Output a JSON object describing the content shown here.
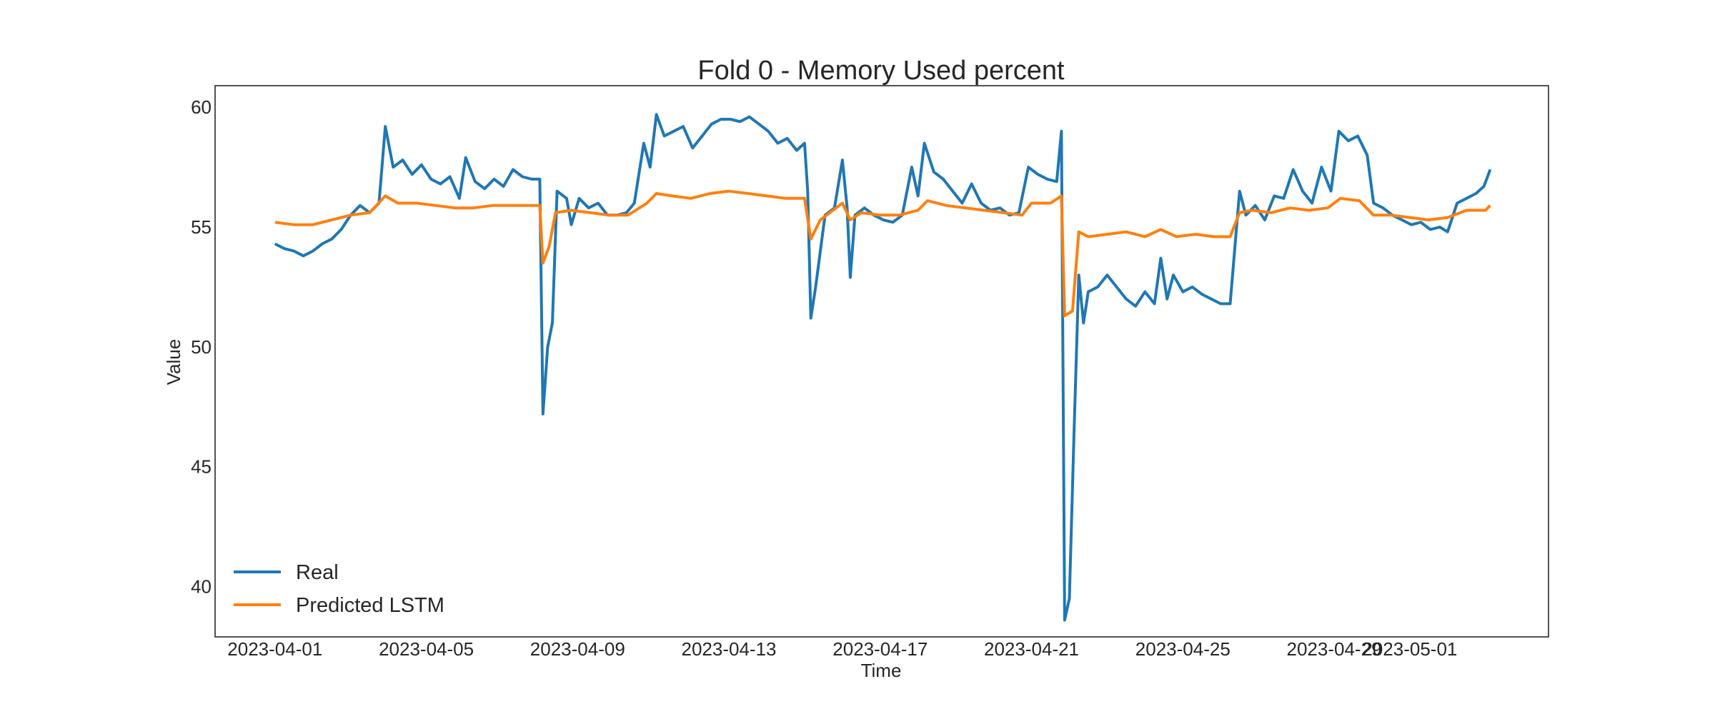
{
  "chart_data": {
    "type": "line",
    "title": "Fold 0 - Memory Used percent",
    "xlabel": "Time",
    "ylabel": "Value",
    "x_type": "date",
    "xlim": [
      "2023-03-30T10:00",
      "2023-05-04T16:00"
    ],
    "ylim": [
      37.9,
      60.9
    ],
    "x_ticks": [
      "2023-04-01",
      "2023-04-05",
      "2023-04-09",
      "2023-04-13",
      "2023-04-17",
      "2023-04-21",
      "2023-04-25",
      "2023-04-29",
      "2023-05-01"
    ],
    "y_ticks": [
      40,
      45,
      50,
      55,
      60
    ],
    "grid": false,
    "legend": {
      "position": "lower-left"
    },
    "series": [
      {
        "name": "Real",
        "color": "#1f77b4",
        "points": [
          [
            "2023-04-01T00:00",
            54.3
          ],
          [
            "2023-04-01T06:00",
            54.1
          ],
          [
            "2023-04-01T12:00",
            54.0
          ],
          [
            "2023-04-01T18:00",
            53.8
          ],
          [
            "2023-04-02T00:00",
            54.0
          ],
          [
            "2023-04-02T06:00",
            54.3
          ],
          [
            "2023-04-02T12:00",
            54.5
          ],
          [
            "2023-04-02T18:00",
            54.9
          ],
          [
            "2023-04-03T00:00",
            55.5
          ],
          [
            "2023-04-03T06:00",
            55.9
          ],
          [
            "2023-04-03T12:00",
            55.6
          ],
          [
            "2023-04-03T18:00",
            56.0
          ],
          [
            "2023-04-03T22:00",
            59.2
          ],
          [
            "2023-04-04T03:00",
            57.5
          ],
          [
            "2023-04-04T09:00",
            57.8
          ],
          [
            "2023-04-04T15:00",
            57.2
          ],
          [
            "2023-04-04T21:00",
            57.6
          ],
          [
            "2023-04-05T03:00",
            57.0
          ],
          [
            "2023-04-05T09:00",
            56.8
          ],
          [
            "2023-04-05T15:00",
            57.1
          ],
          [
            "2023-04-05T21:00",
            56.2
          ],
          [
            "2023-04-06T01:00",
            57.9
          ],
          [
            "2023-04-06T07:00",
            56.9
          ],
          [
            "2023-04-06T13:00",
            56.6
          ],
          [
            "2023-04-06T19:00",
            57.0
          ],
          [
            "2023-04-07T01:00",
            56.7
          ],
          [
            "2023-04-07T07:00",
            57.4
          ],
          [
            "2023-04-07T13:00",
            57.1
          ],
          [
            "2023-04-07T19:00",
            57.0
          ],
          [
            "2023-04-08T00:00",
            57.0
          ],
          [
            "2023-04-08T02:00",
            47.2
          ],
          [
            "2023-04-08T05:00",
            50.0
          ],
          [
            "2023-04-08T08:00",
            51.0
          ],
          [
            "2023-04-08T11:00",
            56.5
          ],
          [
            "2023-04-08T17:00",
            56.2
          ],
          [
            "2023-04-08T20:00",
            55.1
          ],
          [
            "2023-04-09T01:00",
            56.2
          ],
          [
            "2023-04-09T07:00",
            55.8
          ],
          [
            "2023-04-09T13:00",
            56.0
          ],
          [
            "2023-04-09T19:00",
            55.5
          ],
          [
            "2023-04-10T01:00",
            55.5
          ],
          [
            "2023-04-10T07:00",
            55.6
          ],
          [
            "2023-04-10T12:00",
            56.0
          ],
          [
            "2023-04-10T18:00",
            58.5
          ],
          [
            "2023-04-10T22:00",
            57.5
          ],
          [
            "2023-04-11T02:00",
            59.7
          ],
          [
            "2023-04-11T07:00",
            58.8
          ],
          [
            "2023-04-11T13:00",
            59.0
          ],
          [
            "2023-04-11T19:00",
            59.2
          ],
          [
            "2023-04-12T01:00",
            58.3
          ],
          [
            "2023-04-12T07:00",
            58.8
          ],
          [
            "2023-04-12T13:00",
            59.3
          ],
          [
            "2023-04-12T19:00",
            59.5
          ],
          [
            "2023-04-13T01:00",
            59.5
          ],
          [
            "2023-04-13T07:00",
            59.4
          ],
          [
            "2023-04-13T13:00",
            59.6
          ],
          [
            "2023-04-13T19:00",
            59.3
          ],
          [
            "2023-04-14T01:00",
            59.0
          ],
          [
            "2023-04-14T07:00",
            58.5
          ],
          [
            "2023-04-14T13:00",
            58.7
          ],
          [
            "2023-04-14T19:00",
            58.2
          ],
          [
            "2023-04-15T00:00",
            58.5
          ],
          [
            "2023-04-15T02:00",
            56.5
          ],
          [
            "2023-04-15T04:00",
            51.2
          ],
          [
            "2023-04-15T07:00",
            52.5
          ],
          [
            "2023-04-15T10:00",
            54.0
          ],
          [
            "2023-04-15T13:00",
            55.5
          ],
          [
            "2023-04-15T19:00",
            55.8
          ],
          [
            "2023-04-16T00:00",
            57.8
          ],
          [
            "2023-04-16T03:00",
            55.8
          ],
          [
            "2023-04-16T05:00",
            52.9
          ],
          [
            "2023-04-16T08:00",
            55.5
          ],
          [
            "2023-04-16T14:00",
            55.8
          ],
          [
            "2023-04-16T20:00",
            55.5
          ],
          [
            "2023-04-17T02:00",
            55.3
          ],
          [
            "2023-04-17T08:00",
            55.2
          ],
          [
            "2023-04-17T14:00",
            55.5
          ],
          [
            "2023-04-17T20:00",
            57.5
          ],
          [
            "2023-04-18T00:00",
            56.3
          ],
          [
            "2023-04-18T04:00",
            58.5
          ],
          [
            "2023-04-18T10:00",
            57.3
          ],
          [
            "2023-04-18T16:00",
            57.0
          ],
          [
            "2023-04-18T22:00",
            56.5
          ],
          [
            "2023-04-19T04:00",
            56.0
          ],
          [
            "2023-04-19T10:00",
            56.8
          ],
          [
            "2023-04-19T16:00",
            56.0
          ],
          [
            "2023-04-19T22:00",
            55.7
          ],
          [
            "2023-04-20T04:00",
            55.8
          ],
          [
            "2023-04-20T10:00",
            55.5
          ],
          [
            "2023-04-20T16:00",
            55.6
          ],
          [
            "2023-04-20T22:00",
            57.5
          ],
          [
            "2023-04-21T04:00",
            57.2
          ],
          [
            "2023-04-21T10:00",
            57.0
          ],
          [
            "2023-04-21T16:00",
            56.9
          ],
          [
            "2023-04-21T19:00",
            59.0
          ],
          [
            "2023-04-21T21:00",
            38.6
          ],
          [
            "2023-04-22T00:00",
            39.5
          ],
          [
            "2023-04-22T03:00",
            46.5
          ],
          [
            "2023-04-22T06:00",
            53.0
          ],
          [
            "2023-04-22T09:00",
            51.0
          ],
          [
            "2023-04-22T12:00",
            52.3
          ],
          [
            "2023-04-22T18:00",
            52.5
          ],
          [
            "2023-04-23T00:00",
            53.0
          ],
          [
            "2023-04-23T06:00",
            52.5
          ],
          [
            "2023-04-23T12:00",
            52.0
          ],
          [
            "2023-04-23T18:00",
            51.7
          ],
          [
            "2023-04-24T00:00",
            52.3
          ],
          [
            "2023-04-24T06:00",
            51.8
          ],
          [
            "2023-04-24T10:00",
            53.7
          ],
          [
            "2023-04-24T14:00",
            52.0
          ],
          [
            "2023-04-24T18:00",
            53.0
          ],
          [
            "2023-04-25T00:00",
            52.3
          ],
          [
            "2023-04-25T06:00",
            52.5
          ],
          [
            "2023-04-25T12:00",
            52.2
          ],
          [
            "2023-04-25T18:00",
            52.0
          ],
          [
            "2023-04-26T00:00",
            51.8
          ],
          [
            "2023-04-26T06:00",
            51.8
          ],
          [
            "2023-04-26T12:00",
            56.5
          ],
          [
            "2023-04-26T16:00",
            55.5
          ],
          [
            "2023-04-26T22:00",
            55.9
          ],
          [
            "2023-04-27T04:00",
            55.3
          ],
          [
            "2023-04-27T10:00",
            56.3
          ],
          [
            "2023-04-27T16:00",
            56.2
          ],
          [
            "2023-04-27T22:00",
            57.4
          ],
          [
            "2023-04-28T04:00",
            56.5
          ],
          [
            "2023-04-28T10:00",
            56.0
          ],
          [
            "2023-04-28T16:00",
            57.5
          ],
          [
            "2023-04-28T22:00",
            56.5
          ],
          [
            "2023-04-29T03:00",
            59.0
          ],
          [
            "2023-04-29T09:00",
            58.6
          ],
          [
            "2023-04-29T15:00",
            58.8
          ],
          [
            "2023-04-29T21:00",
            58.0
          ],
          [
            "2023-04-30T01:00",
            56.0
          ],
          [
            "2023-04-30T07:00",
            55.8
          ],
          [
            "2023-04-30T13:00",
            55.5
          ],
          [
            "2023-04-30T19:00",
            55.3
          ],
          [
            "2023-05-01T01:00",
            55.1
          ],
          [
            "2023-05-01T07:00",
            55.2
          ],
          [
            "2023-05-01T13:00",
            54.9
          ],
          [
            "2023-05-01T19:00",
            55.0
          ],
          [
            "2023-05-02T00:00",
            54.8
          ],
          [
            "2023-05-02T06:00",
            56.0
          ],
          [
            "2023-05-02T12:00",
            56.2
          ],
          [
            "2023-05-02T18:00",
            56.4
          ],
          [
            "2023-05-02T23:00",
            56.7
          ],
          [
            "2023-05-03T03:00",
            57.4
          ]
        ]
      },
      {
        "name": "Predicted LSTM",
        "color": "#ff7f0e",
        "points": [
          [
            "2023-04-01T00:00",
            55.2
          ],
          [
            "2023-04-01T12:00",
            55.1
          ],
          [
            "2023-04-02T00:00",
            55.1
          ],
          [
            "2023-04-02T12:00",
            55.3
          ],
          [
            "2023-04-03T00:00",
            55.5
          ],
          [
            "2023-04-03T12:00",
            55.6
          ],
          [
            "2023-04-03T22:00",
            56.3
          ],
          [
            "2023-04-04T06:00",
            56.0
          ],
          [
            "2023-04-04T18:00",
            56.0
          ],
          [
            "2023-04-05T06:00",
            55.9
          ],
          [
            "2023-04-05T18:00",
            55.8
          ],
          [
            "2023-04-06T06:00",
            55.8
          ],
          [
            "2023-04-06T18:00",
            55.9
          ],
          [
            "2023-04-07T06:00",
            55.9
          ],
          [
            "2023-04-07T18:00",
            55.9
          ],
          [
            "2023-04-08T00:00",
            55.9
          ],
          [
            "2023-04-08T02:00",
            53.5
          ],
          [
            "2023-04-08T06:00",
            54.2
          ],
          [
            "2023-04-08T10:00",
            55.6
          ],
          [
            "2023-04-08T20:00",
            55.7
          ],
          [
            "2023-04-09T08:00",
            55.6
          ],
          [
            "2023-04-09T20:00",
            55.5
          ],
          [
            "2023-04-10T08:00",
            55.5
          ],
          [
            "2023-04-10T20:00",
            56.0
          ],
          [
            "2023-04-11T02:00",
            56.4
          ],
          [
            "2023-04-11T12:00",
            56.3
          ],
          [
            "2023-04-12T00:00",
            56.2
          ],
          [
            "2023-04-12T12:00",
            56.4
          ],
          [
            "2023-04-13T00:00",
            56.5
          ],
          [
            "2023-04-13T12:00",
            56.4
          ],
          [
            "2023-04-14T00:00",
            56.3
          ],
          [
            "2023-04-14T12:00",
            56.2
          ],
          [
            "2023-04-15T00:00",
            56.2
          ],
          [
            "2023-04-15T04:00",
            54.5
          ],
          [
            "2023-04-15T10:00",
            55.3
          ],
          [
            "2023-04-15T20:00",
            55.8
          ],
          [
            "2023-04-16T00:00",
            56.0
          ],
          [
            "2023-04-16T05:00",
            55.3
          ],
          [
            "2023-04-16T12:00",
            55.6
          ],
          [
            "2023-04-17T00:00",
            55.5
          ],
          [
            "2023-04-17T12:00",
            55.5
          ],
          [
            "2023-04-18T00:00",
            55.7
          ],
          [
            "2023-04-18T06:00",
            56.1
          ],
          [
            "2023-04-18T18:00",
            55.9
          ],
          [
            "2023-04-19T06:00",
            55.8
          ],
          [
            "2023-04-19T18:00",
            55.7
          ],
          [
            "2023-04-20T06:00",
            55.6
          ],
          [
            "2023-04-20T18:00",
            55.5
          ],
          [
            "2023-04-21T00:00",
            56.0
          ],
          [
            "2023-04-21T12:00",
            56.0
          ],
          [
            "2023-04-21T19:00",
            56.3
          ],
          [
            "2023-04-21T21:00",
            51.3
          ],
          [
            "2023-04-22T02:00",
            51.5
          ],
          [
            "2023-04-22T06:00",
            54.8
          ],
          [
            "2023-04-22T12:00",
            54.6
          ],
          [
            "2023-04-23T00:00",
            54.7
          ],
          [
            "2023-04-23T12:00",
            54.8
          ],
          [
            "2023-04-24T00:00",
            54.6
          ],
          [
            "2023-04-24T10:00",
            54.9
          ],
          [
            "2023-04-24T20:00",
            54.6
          ],
          [
            "2023-04-25T08:00",
            54.7
          ],
          [
            "2023-04-25T20:00",
            54.6
          ],
          [
            "2023-04-26T06:00",
            54.6
          ],
          [
            "2023-04-26T12:00",
            55.6
          ],
          [
            "2023-04-26T20:00",
            55.7
          ],
          [
            "2023-04-27T08:00",
            55.6
          ],
          [
            "2023-04-27T20:00",
            55.8
          ],
          [
            "2023-04-28T08:00",
            55.7
          ],
          [
            "2023-04-28T20:00",
            55.8
          ],
          [
            "2023-04-29T04:00",
            56.2
          ],
          [
            "2023-04-29T16:00",
            56.1
          ],
          [
            "2023-04-30T01:00",
            55.5
          ],
          [
            "2023-04-30T12:00",
            55.5
          ],
          [
            "2023-05-01T00:00",
            55.4
          ],
          [
            "2023-05-01T12:00",
            55.3
          ],
          [
            "2023-05-02T00:00",
            55.4
          ],
          [
            "2023-05-02T12:00",
            55.7
          ],
          [
            "2023-05-03T00:00",
            55.7
          ],
          [
            "2023-05-03T03:00",
            55.9
          ]
        ]
      }
    ]
  }
}
